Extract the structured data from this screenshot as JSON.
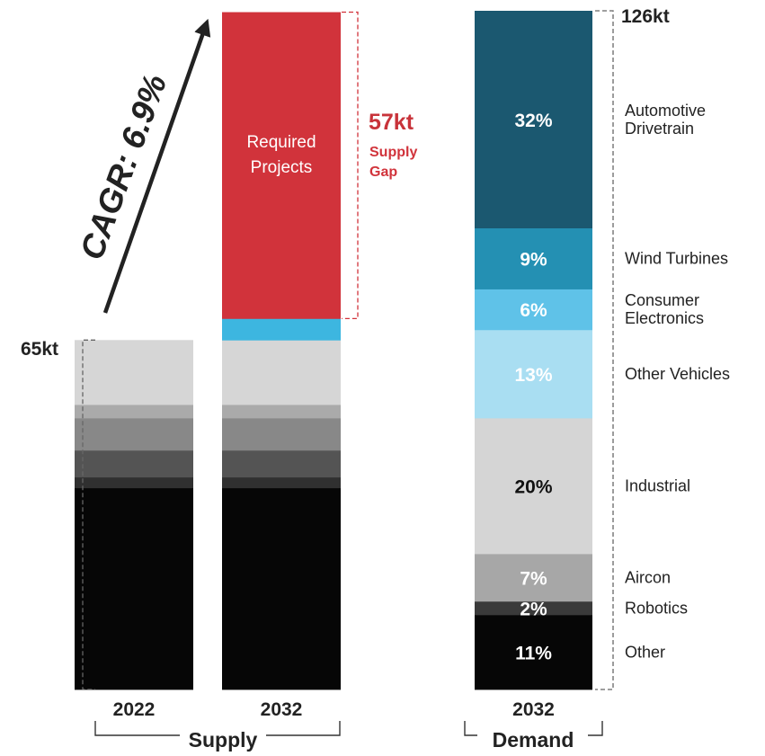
{
  "chart_data": {
    "type": "stacked-bar",
    "supply": {
      "group_label": "Supply",
      "total_label": "65kt",
      "gap_value_label": "57kt",
      "gap_text": [
        "Supply",
        "Gap"
      ],
      "required_text": [
        "Required",
        "Projects"
      ],
      "cagr_label": "CAGR: 6.9%",
      "bars": [
        {
          "year": "2022",
          "segments_kt": [
            37.5,
            2,
            5,
            6,
            2.5,
            12
          ],
          "colors": [
            "#060606",
            "#303030",
            "#545454",
            "#888888",
            "#aaaaaa",
            "#d6d6d6"
          ]
        },
        {
          "year": "2032",
          "segments_kt": [
            37.5,
            2,
            5,
            6,
            2.5,
            12,
            4,
            57
          ],
          "colors": [
            "#060606",
            "#303030",
            "#545454",
            "#888888",
            "#aaaaaa",
            "#d6d6d6",
            "#3db6e0",
            "#d1333b"
          ]
        }
      ]
    },
    "demand": {
      "group_label": "Demand",
      "year": "2032",
      "total_label": "126kt",
      "segments": [
        {
          "name": "Other",
          "pct_label": "11%",
          "pct": 11,
          "color": "#060606",
          "text_color": "#ffffff"
        },
        {
          "name": "Robotics",
          "pct_label": "2%",
          "pct": 2,
          "color": "#3a3a3a",
          "text_color": "#ffffff"
        },
        {
          "name": "Aircon",
          "pct_label": "7%",
          "pct": 7,
          "color": "#a7a7a7",
          "text_color": "#ffffff"
        },
        {
          "name": "Industrial",
          "pct_label": "20%",
          "pct": 20,
          "color": "#d5d5d5",
          "text_color": "#111111"
        },
        {
          "name": "Other Vehicles",
          "pct_label": "13%",
          "pct": 13,
          "color": "#a9def2",
          "text_color": "#ffffff"
        },
        {
          "name": [
            "Consumer",
            "Electronics"
          ],
          "pct_label": "6%",
          "pct": 6,
          "color": "#5fc2e8",
          "text_color": "#ffffff"
        },
        {
          "name": "Wind Turbines",
          "pct_label": "9%",
          "pct": 9,
          "color": "#2490b3",
          "text_color": "#ffffff"
        },
        {
          "name": [
            "Automotive",
            "Drivetrain"
          ],
          "pct_label": "32%",
          "pct": 32,
          "color": "#1b5870",
          "text_color": "#ffffff"
        }
      ]
    }
  }
}
